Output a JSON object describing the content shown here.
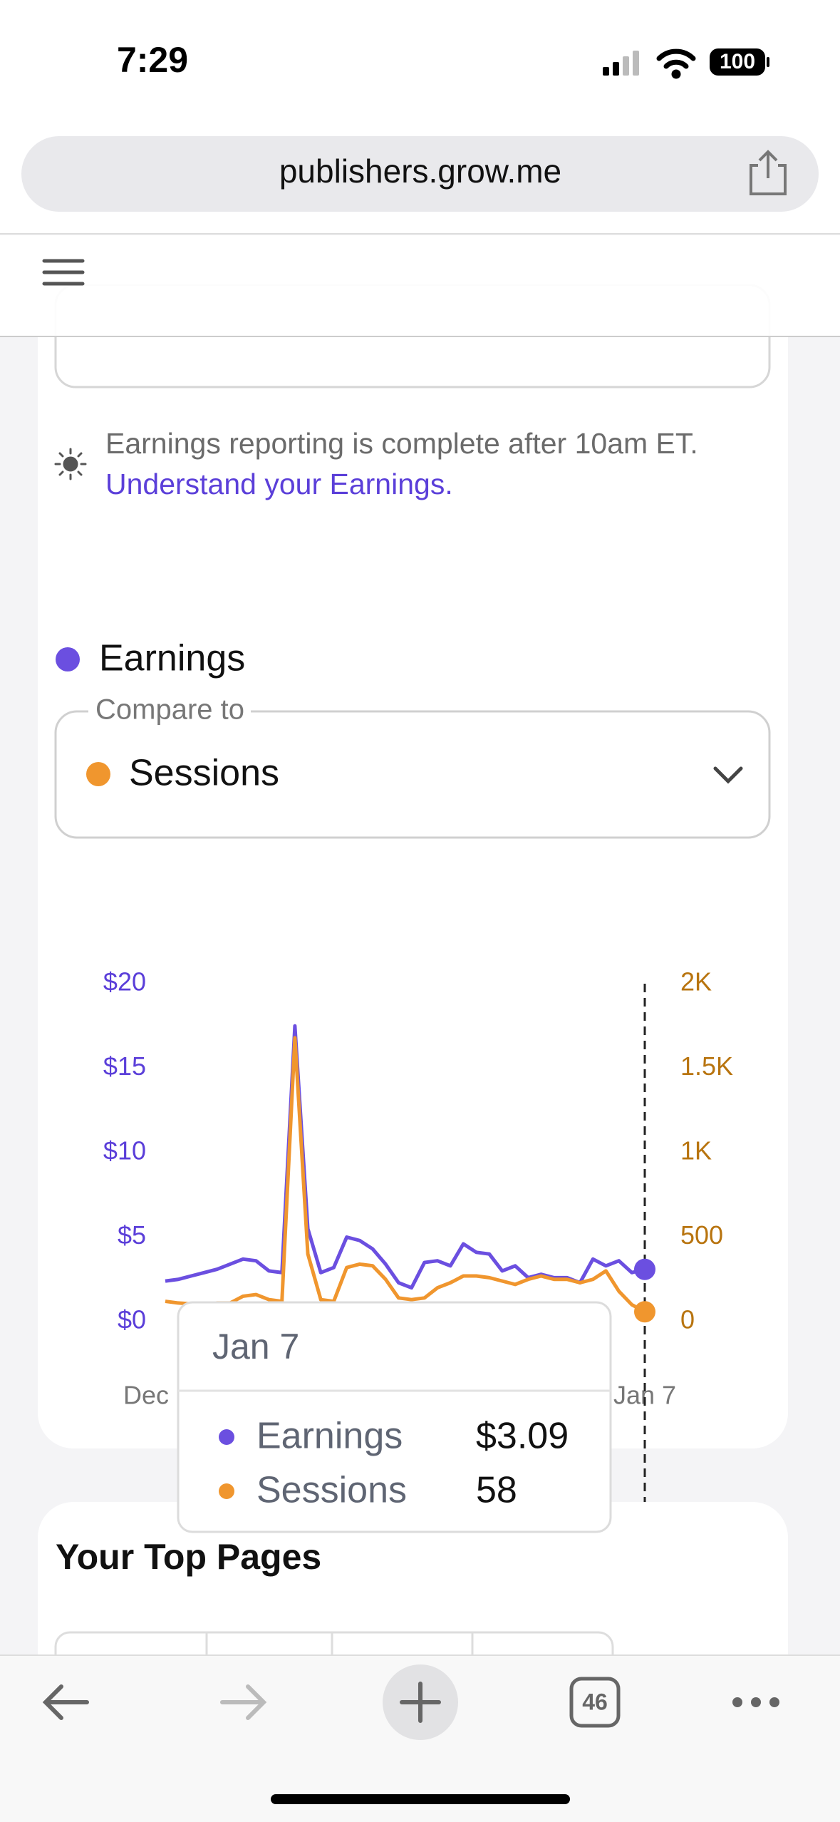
{
  "status": {
    "time": "7:29",
    "battery": "100"
  },
  "browser": {
    "url": "publishers.grow.me",
    "tab_count": "46"
  },
  "notice": {
    "text": "Earnings reporting is complete after 10am ET.",
    "link": "Understand your Earnings."
  },
  "compare": {
    "label": "Compare to",
    "selected": "Sessions"
  },
  "chart_data": {
    "type": "line",
    "categories": [
      "Dec",
      null,
      null,
      null,
      null,
      null,
      null,
      null,
      null,
      null,
      null,
      null,
      null,
      null,
      null,
      null,
      null,
      null,
      null,
      null,
      null,
      null,
      null,
      null,
      null,
      null,
      null,
      null,
      null,
      null,
      null,
      null,
      null,
      null,
      null,
      null,
      null,
      "Jan 7"
    ],
    "series": [
      {
        "name": "Earnings",
        "color": "#6b4fe0",
        "values": [
          2.4,
          2.5,
          2.7,
          2.9,
          3.1,
          3.4,
          3.7,
          3.6,
          3.0,
          2.9,
          17.5,
          5.5,
          2.9,
          3.2,
          5.0,
          4.8,
          4.3,
          3.4,
          2.3,
          2.0,
          3.5,
          3.6,
          3.3,
          4.6,
          4.1,
          4.0,
          3.0,
          3.3,
          2.6,
          2.8,
          2.6,
          2.6,
          2.3,
          3.7,
          3.3,
          3.6,
          2.9,
          3.09
        ]
      },
      {
        "name": "Sessions",
        "color": "#f0962e",
        "axis": "y2",
        "values": [
          120,
          110,
          105,
          105,
          110,
          110,
          150,
          160,
          130,
          120,
          1680,
          400,
          130,
          120,
          320,
          340,
          330,
          250,
          140,
          130,
          140,
          200,
          230,
          270,
          270,
          260,
          240,
          220,
          250,
          270,
          250,
          250,
          230,
          250,
          300,
          180,
          100,
          58
        ]
      }
    ],
    "ylim": [
      0,
      20
    ],
    "yticks": [
      {
        "value": 0,
        "label": "$0"
      },
      {
        "value": 5,
        "label": "$5"
      },
      {
        "value": 10,
        "label": "$10"
      },
      {
        "value": 15,
        "label": "$15"
      },
      {
        "value": 20,
        "label": "$20"
      }
    ],
    "y2lim": [
      0,
      2000
    ],
    "y2ticks": [
      0,
      500,
      {
        "value": 1000,
        "label": "1K"
      },
      {
        "value": 1500,
        "label": "1.5K"
      },
      {
        "value": 2000,
        "label": "2K"
      }
    ]
  },
  "tooltip": {
    "title": "Jan 7",
    "rows": [
      {
        "label": "Earnings",
        "value": "$3.09"
      },
      {
        "label": "Sessions",
        "value": "58"
      }
    ]
  },
  "top_pages": {
    "title": "Your Top Pages"
  }
}
